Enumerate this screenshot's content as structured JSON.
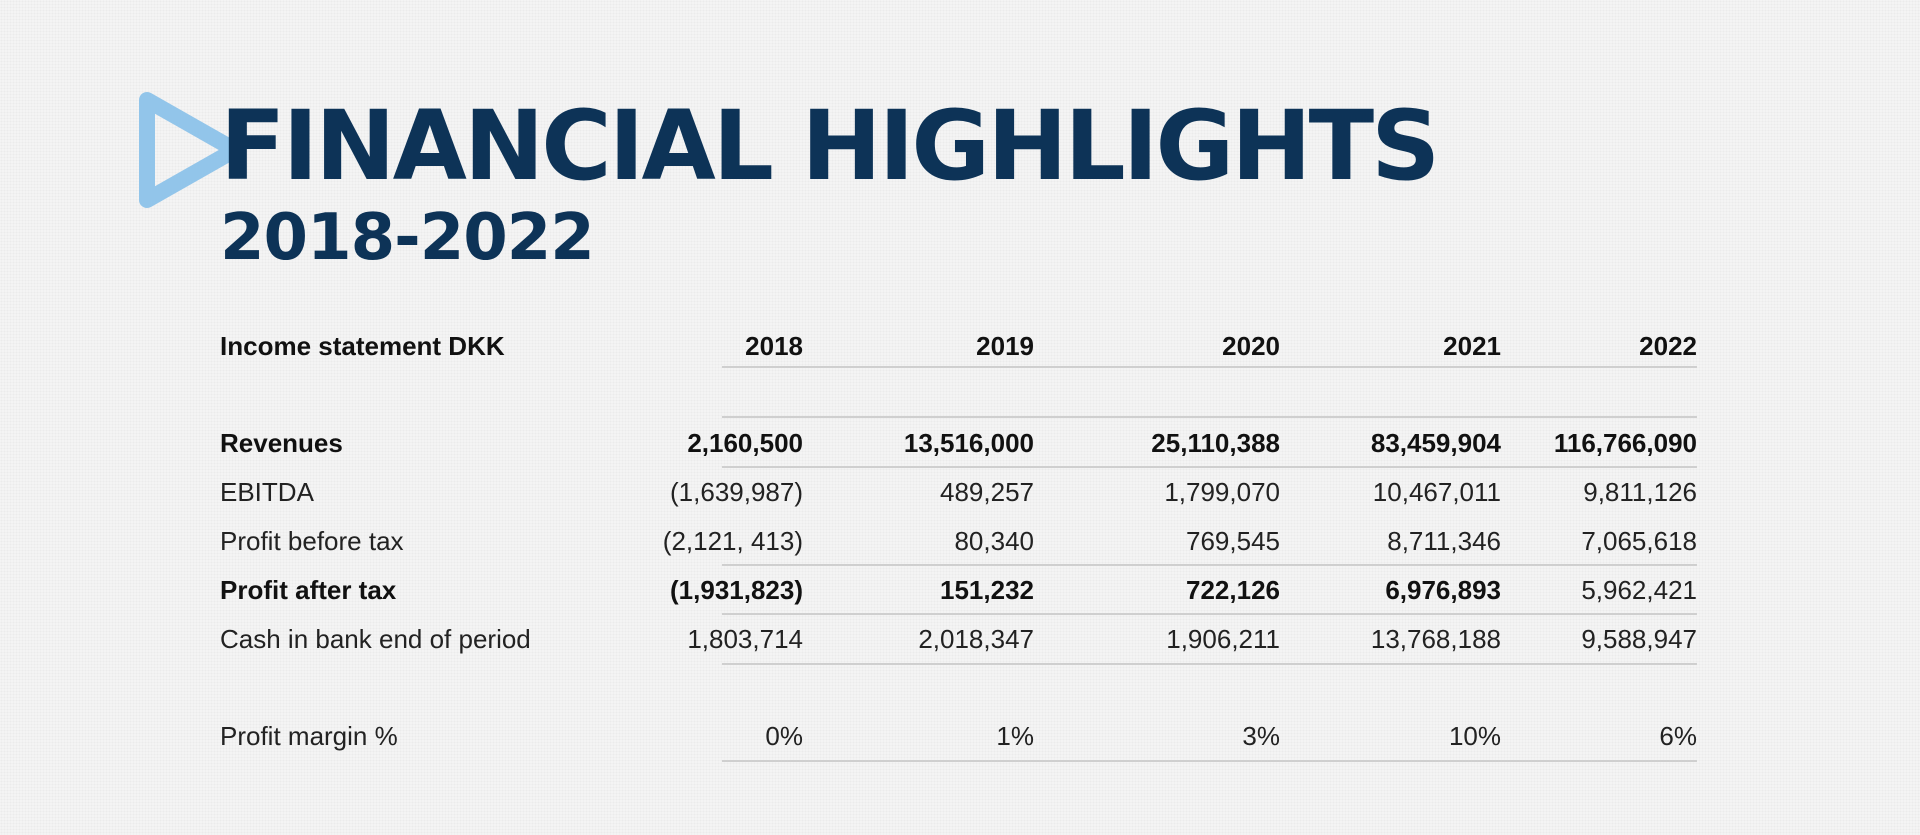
{
  "title": "FINANCIAL HIGHLIGHTS",
  "subtitle": "2018-2022",
  "logo": {
    "icon": "play-triangle-icon",
    "color": "#92c5ea"
  },
  "colors": {
    "title": "#0d3357",
    "text": "#111111",
    "rule": "#cfcfcf"
  },
  "table": {
    "header": {
      "label": "Income statement DKK",
      "years": [
        "2018",
        "2019",
        "2020",
        "2021",
        "2022"
      ]
    },
    "rows": [
      {
        "label": "Revenues",
        "values": [
          "2,160,500",
          "13,516,000",
          "25,110,388",
          "83,459,904",
          "116,766,090"
        ]
      },
      {
        "label": "EBITDA",
        "values": [
          "(1,639,987)",
          "489,257",
          "1,799,070",
          "10,467,011",
          "9,811,126"
        ]
      },
      {
        "label": "Profit before tax",
        "values": [
          "(2,121, 413)",
          "80,340",
          "769,545",
          "8,711,346",
          "7,065,618"
        ]
      },
      {
        "label": "Profit after tax",
        "values": [
          "(1,931,823)",
          "151,232",
          "722,126",
          "6,976,893",
          "5,962,421"
        ]
      },
      {
        "label": "Cash in bank end of period",
        "values": [
          "1,803,714",
          "2,018,347",
          "1,906,211",
          "13,768,188",
          "9,588,947"
        ]
      },
      {
        "label": "Profit margin %",
        "values": [
          "0%",
          "1%",
          "3%",
          "10%",
          "6%"
        ]
      }
    ]
  }
}
